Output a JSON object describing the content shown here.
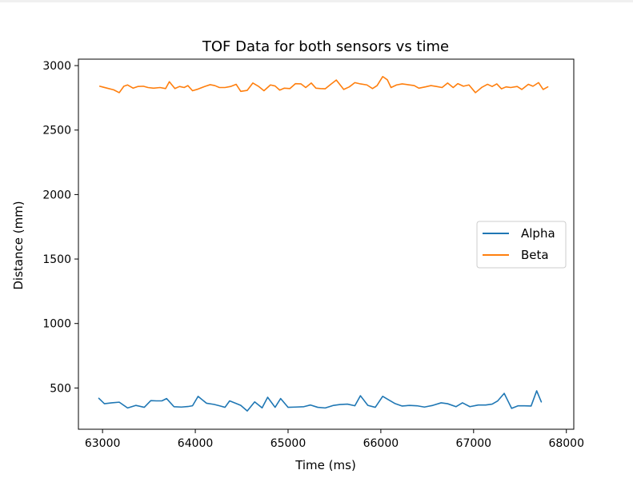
{
  "chart_data": {
    "type": "line",
    "title": "TOF Data for both sensors vs time",
    "xlabel": "Time (ms)",
    "ylabel": "Distance (mm)",
    "xlim": [
      62740,
      68080
    ],
    "ylim": [
      180,
      3050
    ],
    "xticks": [
      63000,
      64000,
      65000,
      66000,
      67000,
      68000
    ],
    "yticks": [
      500,
      1000,
      1500,
      2000,
      2500,
      3000
    ],
    "legend_position": "center-right",
    "series": [
      {
        "name": "Alpha",
        "color": "#1f77b4",
        "x": [
          62960,
          63020,
          63100,
          63180,
          63270,
          63360,
          63450,
          63520,
          63580,
          63640,
          63690,
          63770,
          63850,
          63920,
          63970,
          64030,
          64120,
          64200,
          64260,
          64320,
          64370,
          64440,
          64490,
          64560,
          64640,
          64720,
          64780,
          64860,
          64920,
          65000,
          65080,
          65170,
          65240,
          65320,
          65400,
          65490,
          65560,
          65640,
          65720,
          65780,
          65860,
          65940,
          66020,
          66080,
          66150,
          66230,
          66310,
          66390,
          66470,
          66560,
          66650,
          66720,
          66810,
          66880,
          66960,
          67050,
          67130,
          67200,
          67260,
          67330,
          67410,
          67480,
          67550,
          67620,
          67680,
          67730
        ],
        "y": [
          420,
          378,
          385,
          390,
          345,
          365,
          350,
          402,
          400,
          400,
          418,
          355,
          352,
          356,
          362,
          435,
          382,
          373,
          362,
          350,
          400,
          380,
          365,
          322,
          392,
          346,
          428,
          350,
          418,
          350,
          352,
          355,
          368,
          350,
          345,
          365,
          372,
          375,
          362,
          440,
          365,
          350,
          435,
          410,
          380,
          360,
          365,
          362,
          352,
          365,
          385,
          378,
          355,
          385,
          355,
          368,
          368,
          375,
          400,
          458,
          342,
          362,
          362,
          360,
          478,
          392
        ]
      },
      {
        "name": "Beta",
        "color": "#ff7f0e",
        "x": [
          62970,
          63050,
          63120,
          63180,
          63230,
          63270,
          63330,
          63380,
          63440,
          63490,
          63550,
          63620,
          63680,
          63720,
          63780,
          63830,
          63880,
          63920,
          63970,
          64030,
          64100,
          64160,
          64210,
          64260,
          64320,
          64380,
          64440,
          64490,
          64560,
          64620,
          64680,
          64740,
          64810,
          64860,
          64910,
          64960,
          65020,
          65080,
          65140,
          65190,
          65250,
          65300,
          65350,
          65400,
          65460,
          65520,
          65600,
          65660,
          65720,
          65780,
          65850,
          65910,
          65960,
          66020,
          66070,
          66110,
          66170,
          66230,
          66290,
          66360,
          66410,
          66480,
          66540,
          66600,
          66660,
          66720,
          66780,
          66830,
          66890,
          66950,
          67020,
          67090,
          67150,
          67200,
          67250,
          67300,
          67350,
          67400,
          67470,
          67520,
          67590,
          67640,
          67700,
          67750,
          67800
        ],
        "y": [
          2840,
          2825,
          2812,
          2790,
          2840,
          2850,
          2825,
          2838,
          2840,
          2830,
          2825,
          2830,
          2822,
          2875,
          2822,
          2838,
          2830,
          2845,
          2805,
          2818,
          2838,
          2852,
          2845,
          2830,
          2830,
          2838,
          2855,
          2800,
          2808,
          2865,
          2840,
          2805,
          2850,
          2842,
          2810,
          2825,
          2822,
          2860,
          2858,
          2830,
          2865,
          2825,
          2822,
          2820,
          2855,
          2888,
          2815,
          2835,
          2868,
          2858,
          2850,
          2822,
          2845,
          2915,
          2890,
          2830,
          2850,
          2858,
          2852,
          2845,
          2825,
          2835,
          2845,
          2838,
          2830,
          2865,
          2830,
          2860,
          2840,
          2850,
          2790,
          2832,
          2855,
          2838,
          2858,
          2820,
          2835,
          2830,
          2838,
          2815,
          2855,
          2840,
          2868,
          2815,
          2835
        ]
      }
    ]
  }
}
